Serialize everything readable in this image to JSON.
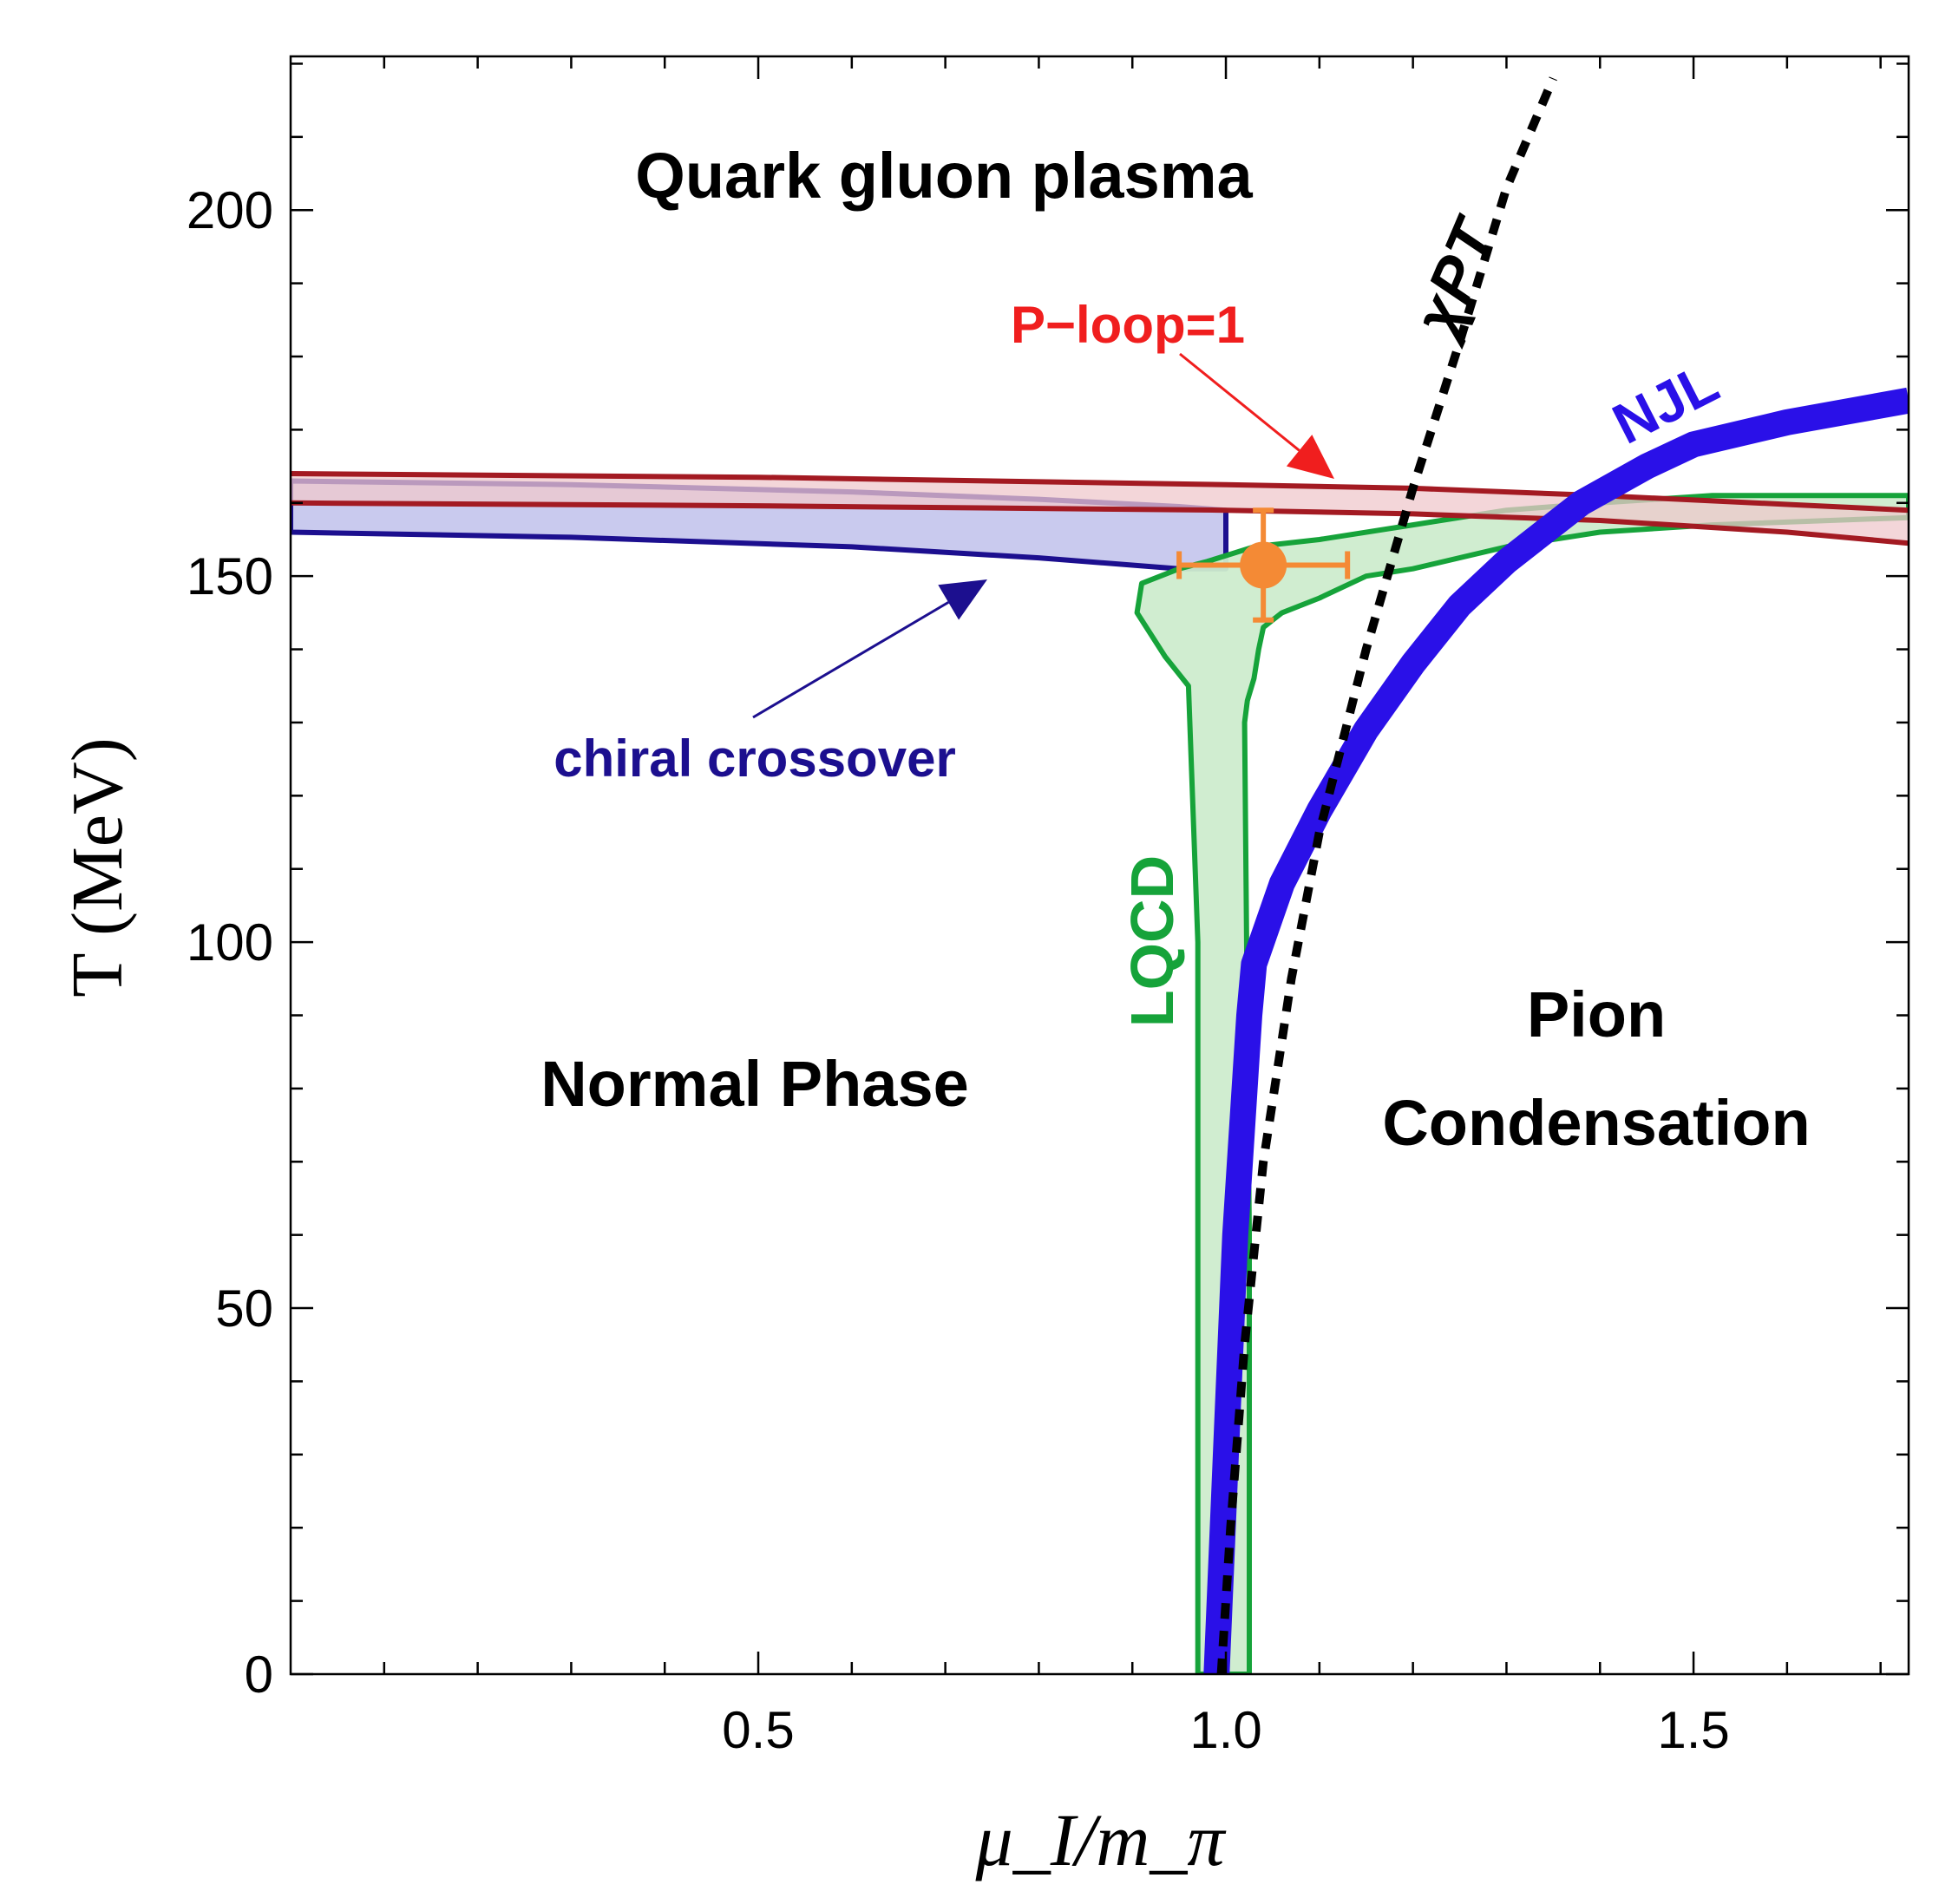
{
  "chart_data": {
    "type": "line",
    "title": "",
    "xlabel": "μ_I/m_π",
    "ylabel": "T (MeV)",
    "xlim": [
      0.0,
      1.73
    ],
    "ylim": [
      0,
      221
    ],
    "x_ticks": [
      0.5,
      1.0,
      1.5
    ],
    "x_tick_labels": [
      "0.5",
      "1.0",
      "1.5"
    ],
    "y_ticks": [
      0,
      50,
      100,
      150,
      200
    ],
    "y_tick_labels": [
      "0",
      "50",
      "100",
      "150",
      "200"
    ],
    "grid": false,
    "colors": {
      "njl": "#2a10e8",
      "xpt": "#000000",
      "lqcd_line": "#16a33a",
      "lqcd_fill": "#cdeccd",
      "chiral_line": "#1c0f8f",
      "chiral_fill": "#c9caee",
      "ploop_line": "#a31a22",
      "ploop_fill": "#efc8cc",
      "ploop_arrow": "#f01e1e",
      "point": "#f48a35"
    },
    "series": [
      {
        "name": "NJL",
        "style": "thick-solid",
        "x": [
          0.99,
          1.0,
          1.01,
          1.02,
          1.025,
          1.03,
          1.06,
          1.1,
          1.15,
          1.2,
          1.25,
          1.3,
          1.38,
          1.45,
          1.5,
          1.6,
          1.73
        ],
        "y": [
          0,
          30,
          60,
          80,
          90,
          97,
          108,
          118,
          129,
          138,
          146,
          152,
          160,
          165,
          168,
          171,
          174
        ]
      },
      {
        "name": "χPT",
        "style": "dashed",
        "x": [
          0.995,
          1.005,
          1.02,
          1.04,
          1.07,
          1.1,
          1.15,
          1.2,
          1.25,
          1.3,
          1.35
        ],
        "y": [
          0,
          20,
          45,
          70,
          95,
          115,
          140,
          162,
          182,
          203,
          218
        ]
      },
      {
        "name": "LQCD",
        "style": "band",
        "left_x": [
          0.97,
          0.97,
          0.97,
          0.96,
          0.935,
          0.905,
          0.91,
          0.95,
          0.98,
          1.03,
          1.1,
          1.2,
          1.3,
          1.4,
          1.52,
          1.73
        ],
        "left_y": [
          0,
          50,
          100,
          135,
          139,
          145,
          149,
          151,
          152,
          154,
          155,
          157,
          159,
          160,
          161,
          161
        ],
        "right_x": [
          1.73,
          1.52,
          1.4,
          1.3,
          1.2,
          1.15,
          1.1,
          1.06,
          1.04,
          1.035,
          1.03,
          1.023,
          1.02,
          1.025,
          1.025
        ],
        "right_y": [
          158,
          157,
          156,
          154,
          151,
          150,
          147,
          145,
          143,
          140,
          136,
          133,
          130,
          60,
          0
        ]
      },
      {
        "name": "chiral crossover",
        "style": "band",
        "upper_x": [
          0.0,
          0.3,
          0.6,
          0.8,
          0.95,
          1.0
        ],
        "upper_y": [
          163,
          162.5,
          161.5,
          160.5,
          159.5,
          159
        ],
        "lower_x": [
          0.0,
          0.3,
          0.6,
          0.8,
          0.95,
          1.0
        ],
        "lower_y": [
          156,
          155.3,
          154,
          152.5,
          151,
          151
        ]
      },
      {
        "name": "P-loop=1",
        "style": "band",
        "upper_x": [
          0.0,
          0.5,
          1.0,
          1.2,
          1.4,
          1.6,
          1.73
        ],
        "upper_y": [
          164,
          163.5,
          162.5,
          162,
          161,
          159.8,
          159
        ],
        "lower_x": [
          0.0,
          0.5,
          1.0,
          1.2,
          1.4,
          1.6,
          1.73
        ],
        "lower_y": [
          160,
          159.6,
          159,
          158.5,
          157.6,
          156,
          154.5
        ]
      }
    ],
    "lattice_point": {
      "x": 1.04,
      "y": 151.5,
      "x_err": 0.09,
      "y_err_up": 7.5,
      "y_err_down": 7.5
    },
    "annotations": {
      "qgp": "Quark gluon plasma",
      "ploop": "P−loop=1",
      "xpt": "χPT",
      "njl": "NJL",
      "chiral": "chiral crossover",
      "lqcd": "LQCD",
      "normal": "Normal Phase",
      "pion_1": "Pion",
      "pion_2": "Condensation"
    }
  }
}
